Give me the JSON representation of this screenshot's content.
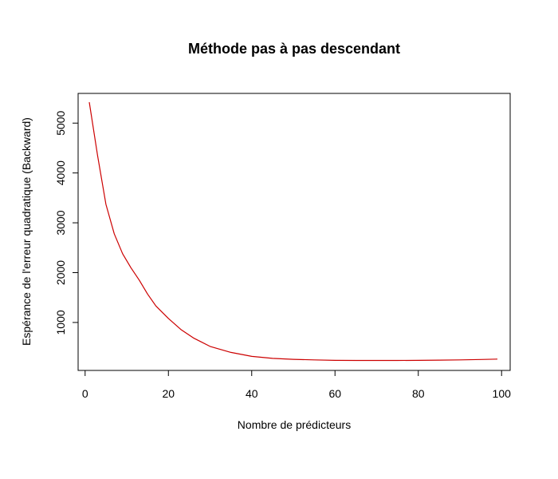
{
  "chart_data": {
    "type": "line",
    "title": "Méthode pas à pas descendant",
    "xlabel": "Nombre de prédicteurs",
    "ylabel": "Espérance de l'erreur quadratique (Backward)",
    "xlim": [
      1,
      99
    ],
    "ylim": [
      230,
      5420
    ],
    "xticks": [
      0,
      20,
      40,
      60,
      80,
      100
    ],
    "yticks": [
      1000,
      2000,
      3000,
      4000,
      5000
    ],
    "grid": false,
    "series": [
      {
        "color": "#cc0000",
        "x": [
          1,
          3,
          5,
          7,
          9,
          11,
          13,
          15,
          17,
          20,
          23,
          26,
          30,
          35,
          40,
          45,
          50,
          55,
          60,
          65,
          70,
          75,
          80,
          85,
          90,
          95,
          99
        ],
        "y": [
          5420,
          4350,
          3370,
          2780,
          2380,
          2100,
          1850,
          1570,
          1330,
          1080,
          860,
          690,
          520,
          400,
          320,
          280,
          260,
          250,
          240,
          238,
          238,
          238,
          240,
          245,
          250,
          258,
          265
        ]
      }
    ]
  }
}
